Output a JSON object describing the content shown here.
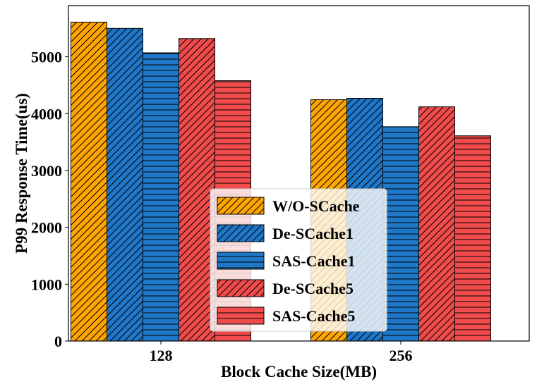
{
  "chart_data": {
    "type": "bar",
    "categories": [
      "128",
      "256"
    ],
    "series": [
      {
        "name": "W/O-SCache",
        "values": [
          5610,
          4245
        ],
        "color": "#ffa500",
        "hatch": "diagonal"
      },
      {
        "name": "De-SCache1",
        "values": [
          5500,
          4270
        ],
        "color": "#1f77c8",
        "hatch": "diagonal"
      },
      {
        "name": "SAS-Cache1",
        "values": [
          5070,
          3770
        ],
        "color": "#1f77c8",
        "hatch": "horizontal"
      },
      {
        "name": "De-SCache5",
        "values": [
          5320,
          4120
        ],
        "color": "#f14b4b",
        "hatch": "diagonal"
      },
      {
        "name": "SAS-Cache5",
        "values": [
          4580,
          3610
        ],
        "color": "#f14b4b",
        "hatch": "horizontal"
      }
    ],
    "xlabel": "Block Cache Size(MB)",
    "ylabel": "P99 Response Time(us)",
    "ylim": [
      0,
      5900
    ],
    "yticks": [
      "0",
      "1000",
      "2000",
      "3000",
      "4000",
      "5000"
    ],
    "legend_position": "lower-center",
    "grid": false
  }
}
